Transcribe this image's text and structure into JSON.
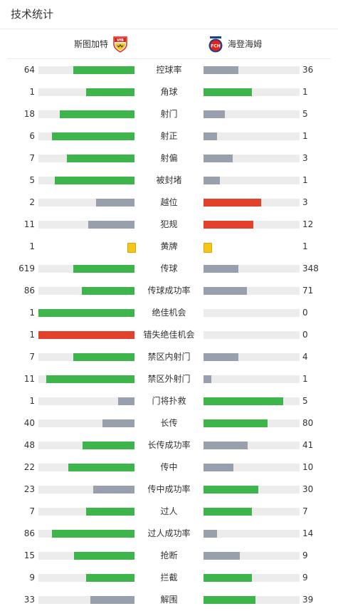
{
  "title": "技术统计",
  "home_team": "斯图加特",
  "away_team": "海登海姆",
  "colors": {
    "win": "#3db54a",
    "lose": "#98a0ae",
    "bad": "#e2412b",
    "yellow": "#f5c518",
    "track": "#ececec"
  },
  "stats": [
    {
      "label": "控球率",
      "home": "64",
      "away": "36",
      "home_fill": 0.64,
      "away_fill": 0.36,
      "home_color": "win",
      "away_color": "lose"
    },
    {
      "label": "角球",
      "home": "1",
      "away": "1",
      "home_fill": 0.5,
      "away_fill": 0.5,
      "home_color": "win",
      "away_color": "win"
    },
    {
      "label": "射门",
      "home": "18",
      "away": "5",
      "home_fill": 0.78,
      "away_fill": 0.22,
      "home_color": "win",
      "away_color": "lose"
    },
    {
      "label": "射正",
      "home": "6",
      "away": "1",
      "home_fill": 0.86,
      "away_fill": 0.14,
      "home_color": "win",
      "away_color": "lose"
    },
    {
      "label": "射偏",
      "home": "7",
      "away": "3",
      "home_fill": 0.7,
      "away_fill": 0.3,
      "home_color": "win",
      "away_color": "lose"
    },
    {
      "label": "被封堵",
      "home": "5",
      "away": "1",
      "home_fill": 0.83,
      "away_fill": 0.17,
      "home_color": "win",
      "away_color": "lose"
    },
    {
      "label": "越位",
      "home": "2",
      "away": "3",
      "home_fill": 0.4,
      "away_fill": 0.6,
      "home_color": "lose",
      "away_color": "bad"
    },
    {
      "label": "犯规",
      "home": "11",
      "away": "12",
      "home_fill": 0.48,
      "away_fill": 0.52,
      "home_color": "lose",
      "away_color": "bad"
    },
    {
      "label": "黄牌",
      "home": "1",
      "away": "1",
      "card": true
    },
    {
      "label": "传球",
      "home": "619",
      "away": "348",
      "home_fill": 0.64,
      "away_fill": 0.36,
      "home_color": "win",
      "away_color": "lose"
    },
    {
      "label": "传球成功率",
      "home": "86",
      "away": "71",
      "home_fill": 0.55,
      "away_fill": 0.45,
      "home_color": "win",
      "away_color": "lose"
    },
    {
      "label": "绝佳机会",
      "home": "1",
      "away": "0",
      "home_fill": 1.0,
      "away_fill": 0.0,
      "home_color": "win",
      "away_color": "lose"
    },
    {
      "label": "错失绝佳机会",
      "home": "1",
      "away": "0",
      "home_fill": 1.0,
      "away_fill": 0.0,
      "home_color": "bad",
      "away_color": "lose"
    },
    {
      "label": "禁区内射门",
      "home": "7",
      "away": "4",
      "home_fill": 0.64,
      "away_fill": 0.36,
      "home_color": "win",
      "away_color": "lose"
    },
    {
      "label": "禁区外射门",
      "home": "11",
      "away": "1",
      "home_fill": 0.92,
      "away_fill": 0.08,
      "home_color": "win",
      "away_color": "lose"
    },
    {
      "label": "门将扑救",
      "home": "1",
      "away": "5",
      "home_fill": 0.17,
      "away_fill": 0.83,
      "home_color": "lose",
      "away_color": "win"
    },
    {
      "label": "长传",
      "home": "40",
      "away": "80",
      "home_fill": 0.33,
      "away_fill": 0.67,
      "home_color": "lose",
      "away_color": "win"
    },
    {
      "label": "长传成功率",
      "home": "48",
      "away": "41",
      "home_fill": 0.54,
      "away_fill": 0.46,
      "home_color": "win",
      "away_color": "lose"
    },
    {
      "label": "传中",
      "home": "22",
      "away": "10",
      "home_fill": 0.69,
      "away_fill": 0.31,
      "home_color": "win",
      "away_color": "lose"
    },
    {
      "label": "传中成功率",
      "home": "23",
      "away": "30",
      "home_fill": 0.43,
      "away_fill": 0.57,
      "home_color": "lose",
      "away_color": "win"
    },
    {
      "label": "过人",
      "home": "7",
      "away": "7",
      "home_fill": 0.5,
      "away_fill": 0.5,
      "home_color": "win",
      "away_color": "win"
    },
    {
      "label": "过人成功率",
      "home": "86",
      "away": "14",
      "home_fill": 0.86,
      "away_fill": 0.14,
      "home_color": "win",
      "away_color": "lose"
    },
    {
      "label": "抢断",
      "home": "15",
      "away": "9",
      "home_fill": 0.63,
      "away_fill": 0.38,
      "home_color": "win",
      "away_color": "lose"
    },
    {
      "label": "拦截",
      "home": "9",
      "away": "9",
      "home_fill": 0.5,
      "away_fill": 0.5,
      "home_color": "win",
      "away_color": "win"
    },
    {
      "label": "解围",
      "home": "33",
      "away": "39",
      "home_fill": 0.46,
      "away_fill": 0.54,
      "home_color": "lose",
      "away_color": "win"
    }
  ]
}
